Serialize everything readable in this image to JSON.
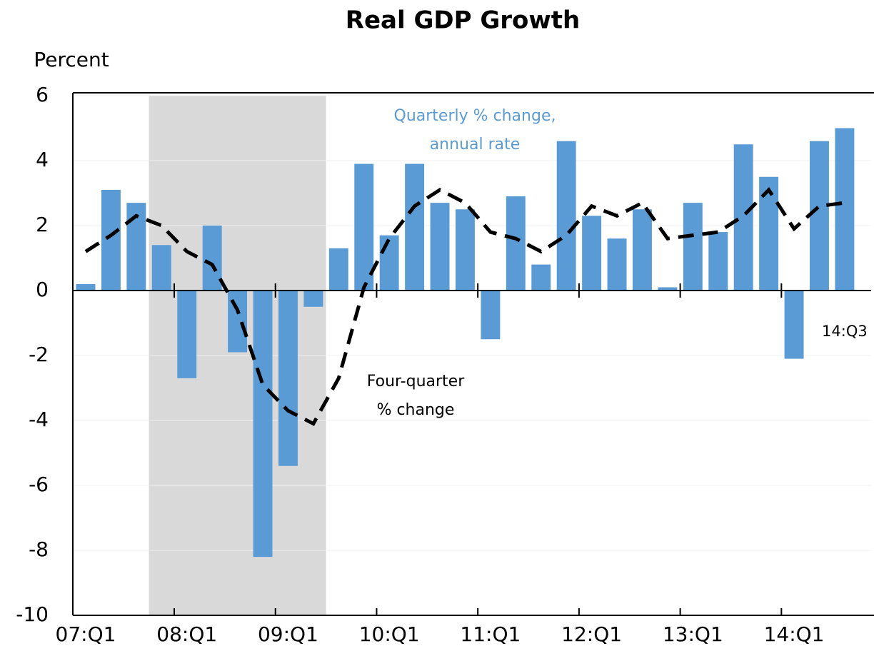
{
  "chart_data": {
    "type": "bar",
    "title": "Real GDP Growth",
    "y_axis_label": "Percent",
    "categories": [
      "07:Q1",
      null,
      null,
      null,
      "08:Q1",
      null,
      null,
      null,
      "09:Q1",
      null,
      null,
      null,
      "10:Q1",
      null,
      null,
      null,
      "11:Q1",
      null,
      null,
      null,
      "12:Q1",
      null,
      null,
      null,
      "13:Q1",
      null,
      null,
      null,
      "14:Q1",
      null,
      "14:Q3"
    ],
    "series": [
      {
        "name": [
          "Quarterly % change,",
          "annual rate"
        ],
        "type": "bar",
        "color": "#5b9bd5",
        "values": [
          0.2,
          3.1,
          2.7,
          1.4,
          -2.7,
          2.0,
          -1.9,
          -8.2,
          -5.4,
          -0.5,
          1.3,
          3.9,
          1.7,
          3.9,
          2.7,
          2.5,
          -1.5,
          2.9,
          0.8,
          4.6,
          2.3,
          1.6,
          2.5,
          0.1,
          2.7,
          1.8,
          4.5,
          3.5,
          -2.1,
          4.6,
          5.0
        ]
      },
      {
        "name": [
          "Four-quarter",
          "% change"
        ],
        "type": "line",
        "color": "#000000",
        "dashed": true,
        "values": [
          1.2,
          1.7,
          2.3,
          2.0,
          1.2,
          0.8,
          -0.6,
          -2.9,
          -3.7,
          -4.1,
          -2.7,
          0.1,
          1.6,
          2.6,
          3.1,
          2.7,
          1.8,
          1.6,
          1.2,
          1.7,
          2.6,
          2.3,
          2.7,
          1.6,
          1.7,
          1.8,
          2.3,
          3.1,
          1.9,
          2.6,
          2.7
        ]
      }
    ],
    "ylim": [
      -10,
      6
    ],
    "yticks": [
      -10,
      -8,
      -6,
      -4,
      -2,
      0,
      2,
      4,
      6
    ],
    "grid": true
  }
}
